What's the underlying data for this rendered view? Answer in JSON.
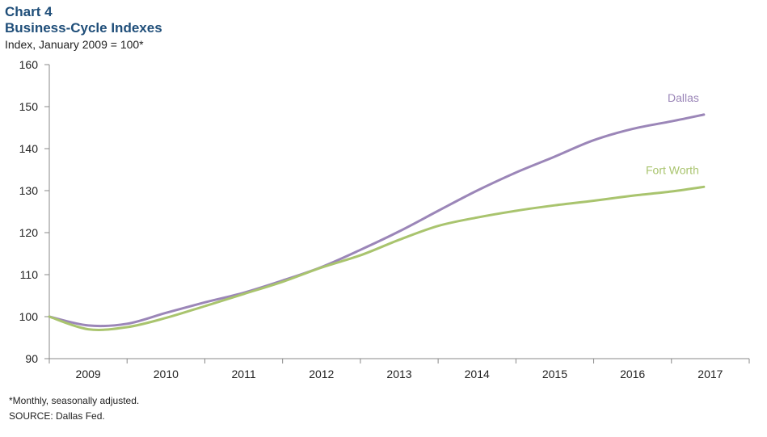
{
  "header": {
    "chart_number": "Chart 4",
    "title": "Business-Cycle Indexes",
    "subtitle": "Index, January 2009 = 100*"
  },
  "footer": {
    "note": "*Monthly, seasonally adjusted.",
    "source": "SOURCE: Dallas Fed."
  },
  "chart_data": {
    "type": "line",
    "title": "Business-Cycle Indexes",
    "ylabel": "Index, January 2009 = 100*",
    "xlabel": "",
    "ylim": [
      90,
      160
    ],
    "yticks": [
      90,
      100,
      110,
      120,
      130,
      140,
      150,
      160
    ],
    "xlim": [
      "2009-01",
      "2017-06"
    ],
    "x_tick_labels": [
      "2009",
      "2010",
      "2011",
      "2012",
      "2013",
      "2014",
      "2015",
      "2016",
      "2017"
    ],
    "grid": false,
    "legend": "inline labels at line ends",
    "x": [
      "2009-01",
      "2009-07",
      "2010-01",
      "2010-07",
      "2011-01",
      "2011-07",
      "2012-01",
      "2012-07",
      "2013-01",
      "2013-07",
      "2014-01",
      "2014-07",
      "2015-01",
      "2015-07",
      "2016-01",
      "2016-07",
      "2017-01",
      "2017-06"
    ],
    "series": [
      {
        "name": "Dallas",
        "color": "#9b86b8",
        "values": [
          100.0,
          97.9,
          98.3,
          100.9,
          103.4,
          105.7,
          108.6,
          111.8,
          115.9,
          120.3,
          125.2,
          130.0,
          134.3,
          138.1,
          142.0,
          144.7,
          146.5,
          148.1
        ]
      },
      {
        "name": "Fort Worth",
        "color": "#a9c46e",
        "values": [
          100.0,
          97.0,
          97.5,
          99.7,
          102.5,
          105.4,
          108.3,
          111.7,
          114.6,
          118.3,
          121.6,
          123.6,
          125.2,
          126.5,
          127.6,
          128.8,
          129.8,
          130.9
        ]
      }
    ]
  }
}
